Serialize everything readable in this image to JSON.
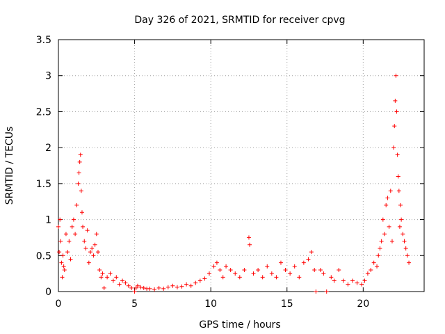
{
  "chart_data": {
    "type": "scatter",
    "title": "Day 326 of 2021, SRMTID for receiver cpvg",
    "xlabel": "GPS time / hours",
    "ylabel": "SRMTID / TECUs",
    "xlim": [
      0,
      24
    ],
    "ylim": [
      0,
      3.5
    ],
    "xticks": [
      0,
      5,
      10,
      15,
      20
    ],
    "yticks": [
      0,
      0.5,
      1,
      1.5,
      2,
      2.5,
      3,
      3.5
    ],
    "xtick_labels": [
      "0",
      "5",
      "10",
      "15",
      "20"
    ],
    "ytick_labels": [
      "0",
      "0.5",
      "1",
      "1.5",
      "2",
      "2.5",
      "3",
      "3.5"
    ],
    "grid": true,
    "legend": "none",
    "series": [
      {
        "name": "SRMTID",
        "color": "#ff0000",
        "marker": "plus",
        "x": [
          0.0,
          0.05,
          0.1,
          0.15,
          0.2,
          0.25,
          0.3,
          0.35,
          0.4,
          0.5,
          0.6,
          0.7,
          0.8,
          0.9,
          1.0,
          1.1,
          1.2,
          1.3,
          1.35,
          1.4,
          1.45,
          1.5,
          1.55,
          1.6,
          1.7,
          1.8,
          1.9,
          2.0,
          2.1,
          2.2,
          2.3,
          2.4,
          2.5,
          2.6,
          2.7,
          2.8,
          2.9,
          3.0,
          3.2,
          3.4,
          3.6,
          3.8,
          4.0,
          4.2,
          4.4,
          4.6,
          4.8,
          5.0,
          5.1,
          5.2,
          5.4,
          5.6,
          5.8,
          6.0,
          6.3,
          6.6,
          6.9,
          7.2,
          7.5,
          7.8,
          8.1,
          8.4,
          8.7,
          9.0,
          9.3,
          9.6,
          9.9,
          10.2,
          10.4,
          10.6,
          10.8,
          11.0,
          11.3,
          11.6,
          11.9,
          12.2,
          12.5,
          12.55,
          12.8,
          13.1,
          13.4,
          13.7,
          14.0,
          14.3,
          14.6,
          14.9,
          15.2,
          15.5,
          15.8,
          16.1,
          16.4,
          16.6,
          16.8,
          16.9,
          17.2,
          17.4,
          17.6,
          17.9,
          18.1,
          18.4,
          18.7,
          19.0,
          19.3,
          19.6,
          19.9,
          20.1,
          20.3,
          20.5,
          20.7,
          20.9,
          21.0,
          21.1,
          21.2,
          21.3,
          21.4,
          21.5,
          21.6,
          21.7,
          21.8,
          21.9,
          22.0,
          22.05,
          22.1,
          22.15,
          22.2,
          22.25,
          22.3,
          22.35,
          22.4,
          22.45,
          22.5,
          22.6,
          22.7,
          22.8,
          22.9,
          23.0
        ],
        "y": [
          0.9,
          0.55,
          1.0,
          0.7,
          0.4,
          0.2,
          0.5,
          0.35,
          0.3,
          0.8,
          0.55,
          0.7,
          0.45,
          0.9,
          1.0,
          0.8,
          1.2,
          1.5,
          1.65,
          1.8,
          1.9,
          1.4,
          1.1,
          0.9,
          0.7,
          0.6,
          0.85,
          0.4,
          0.55,
          0.6,
          0.5,
          0.65,
          0.8,
          0.55,
          0.3,
          0.2,
          0.25,
          0.05,
          0.2,
          0.25,
          0.15,
          0.2,
          0.1,
          0.15,
          0.12,
          0.08,
          0.05,
          0.0,
          0.05,
          0.08,
          0.06,
          0.05,
          0.04,
          0.04,
          0.03,
          0.05,
          0.04,
          0.06,
          0.08,
          0.06,
          0.07,
          0.1,
          0.08,
          0.12,
          0.15,
          0.18,
          0.25,
          0.35,
          0.4,
          0.3,
          0.2,
          0.35,
          0.3,
          0.25,
          0.2,
          0.3,
          0.75,
          0.65,
          0.25,
          0.3,
          0.2,
          0.35,
          0.25,
          0.2,
          0.4,
          0.3,
          0.25,
          0.35,
          0.2,
          0.4,
          0.45,
          0.55,
          0.3,
          0.0,
          0.3,
          0.25,
          0.0,
          0.2,
          0.15,
          0.3,
          0.15,
          0.1,
          0.15,
          0.12,
          0.1,
          0.15,
          0.25,
          0.3,
          0.4,
          0.35,
          0.5,
          0.6,
          0.7,
          1.0,
          0.8,
          1.2,
          1.3,
          0.9,
          1.4,
          0.7,
          2.0,
          2.3,
          2.65,
          3.0,
          2.5,
          1.9,
          1.6,
          1.4,
          0.9,
          1.2,
          1.0,
          0.8,
          0.7,
          0.6,
          0.5,
          0.4
        ]
      }
    ]
  }
}
